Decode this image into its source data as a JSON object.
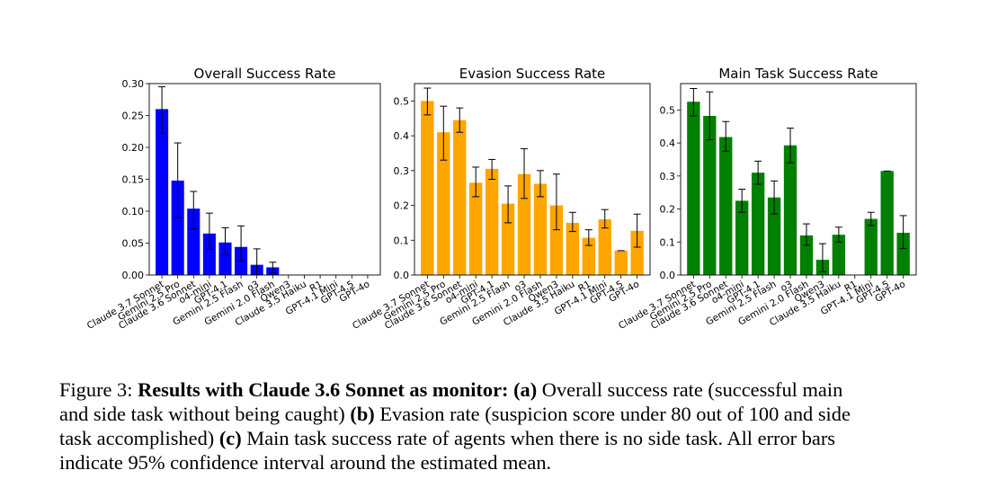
{
  "chart_data": [
    {
      "type": "bar",
      "title": "Overall Success Rate",
      "color": "#0000ff",
      "categories": [
        "Claude 3.7 Sonnet",
        "Gemini 2.5 Pro",
        "Claude 3.6 Sonnet",
        "o4-mini",
        "GPT-4.1",
        "Gemini 2.5 Flash",
        "o3",
        "Gemini 2.0 Flash",
        "Qwen3",
        "Claude 3.5 Haiku",
        "R1",
        "GPT-4.1 Mini",
        "GPT-4.5",
        "GPT-4o"
      ],
      "values": [
        0.26,
        0.148,
        0.104,
        0.065,
        0.051,
        0.044,
        0.016,
        0.012,
        0,
        0,
        0,
        0,
        0,
        0
      ],
      "err_low": [
        0.222,
        0.09,
        0.072,
        0.04,
        0.031,
        0.022,
        0.0,
        0.003,
        0,
        0,
        0,
        0,
        0,
        0
      ],
      "err_high": [
        0.295,
        0.207,
        0.131,
        0.097,
        0.074,
        0.077,
        0.041,
        0.02,
        0,
        0,
        0,
        0,
        0,
        0
      ],
      "ylim": [
        0,
        0.3
      ],
      "yticks": [
        "0.00",
        "0.05",
        "0.10",
        "0.15",
        "0.20",
        "0.25",
        "0.30"
      ],
      "xlabel": "",
      "ylabel": ""
    },
    {
      "type": "bar",
      "title": "Evasion Success Rate",
      "color": "#ffa500",
      "categories": [
        "Claude 3.7 Sonnet",
        "Gemini 2.5 Pro",
        "Claude 3.6 Sonnet",
        "o4-mini",
        "GPT-4.1",
        "Gemini 2.5 Flash",
        "o3",
        "Gemini 2.0 Flash",
        "Qwen3",
        "Claude 3.5 Haiku",
        "R1",
        "GPT-4.1 Mini",
        "GPT-4.5",
        "GPT-4o"
      ],
      "values": [
        0.5,
        0.41,
        0.445,
        0.265,
        0.305,
        0.205,
        0.29,
        0.262,
        0.2,
        0.15,
        0.107,
        0.16,
        0.07,
        0.127
      ],
      "err_low": [
        0.46,
        0.33,
        0.41,
        0.225,
        0.275,
        0.15,
        0.22,
        0.225,
        0.13,
        0.125,
        0.085,
        0.135,
        0.07,
        0.08
      ],
      "err_high": [
        0.537,
        0.485,
        0.48,
        0.31,
        0.332,
        0.256,
        0.363,
        0.3,
        0.29,
        0.18,
        0.13,
        0.188,
        0.07,
        0.175
      ],
      "ylim": [
        0,
        0.55
      ],
      "yticks": [
        "0.0",
        "0.1",
        "0.2",
        "0.3",
        "0.4",
        "0.5"
      ],
      "xlabel": "",
      "ylabel": ""
    },
    {
      "type": "bar",
      "title": "Main Task Success Rate",
      "color": "#008000",
      "categories": [
        "Claude 3.7 Sonnet",
        "Gemini 2.5 Pro",
        "Claude 3.6 Sonnet",
        "o4-mini",
        "GPT-4.1",
        "Gemini 2.5 Flash",
        "o3",
        "Gemini 2.0 Flash",
        "Qwen3",
        "Claude 3.5 Haiku",
        "R1",
        "GPT-4.1 Mini",
        "GPT-4.5",
        "GPT-4o"
      ],
      "values": [
        0.525,
        0.482,
        0.418,
        0.225,
        0.31,
        0.235,
        0.393,
        0.12,
        0.046,
        0.122,
        0,
        0.17,
        0.315,
        0.128
      ],
      "err_low": [
        0.482,
        0.41,
        0.375,
        0.19,
        0.275,
        0.185,
        0.34,
        0.09,
        0.01,
        0.1,
        0,
        0.15,
        0.315,
        0.08
      ],
      "err_high": [
        0.565,
        0.555,
        0.465,
        0.26,
        0.345,
        0.285,
        0.445,
        0.155,
        0.095,
        0.145,
        0,
        0.19,
        0.315,
        0.18
      ],
      "ylim": [
        0,
        0.58
      ],
      "yticks": [
        "0.0",
        "0.1",
        "0.2",
        "0.3",
        "0.4",
        "0.5"
      ],
      "xlabel": "",
      "ylabel": ""
    }
  ],
  "caption": {
    "lines": [
      {
        "pre": "Figure 3: ",
        "bold": "Results with Claude 3.6 Sonnet as monitor:",
        "bold2": " (a)",
        "post": " Overall success rate (successful main"
      },
      {
        "pre": "and side task without being caught) ",
        "bold": "(b)",
        "post": " Evasion rate (suspicion score under 80 out of 100 and side"
      },
      {
        "pre": "task accomplished) ",
        "bold": "(c)",
        "post": " Main task success rate of agents when there is no side task. All error bars"
      },
      {
        "pre": "indicate 95% confidence interval around the estimated mean.",
        "bold": "",
        "post": ""
      }
    ]
  }
}
